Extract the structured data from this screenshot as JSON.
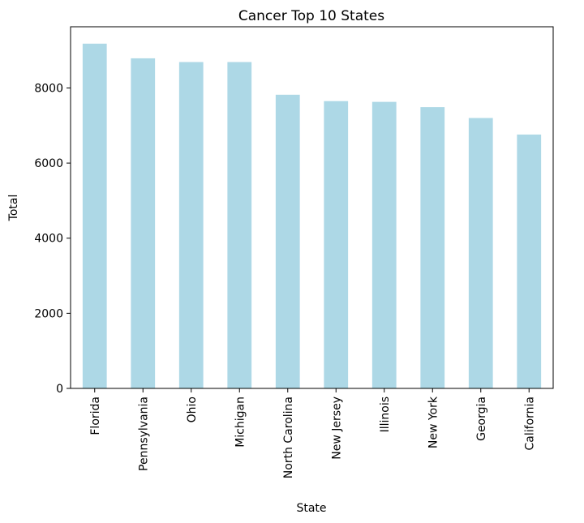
{
  "chart_data": {
    "type": "bar",
    "title": "Cancer Top 10 States",
    "xlabel": "State",
    "ylabel": "Total",
    "categories": [
      "Florida",
      "Pennsylvania",
      "Ohio",
      "Michigan",
      "North Carolina",
      "New Jersey",
      "Illinois",
      "New York",
      "Georgia",
      "California"
    ],
    "values": [
      9180,
      8790,
      8690,
      8690,
      7820,
      7650,
      7630,
      7490,
      7200,
      6760
    ],
    "ylim": [
      0,
      9630
    ],
    "yticks": [
      0,
      2000,
      4000,
      6000,
      8000
    ],
    "grid": false,
    "legend": "none",
    "bar_color": "#add8e6"
  }
}
